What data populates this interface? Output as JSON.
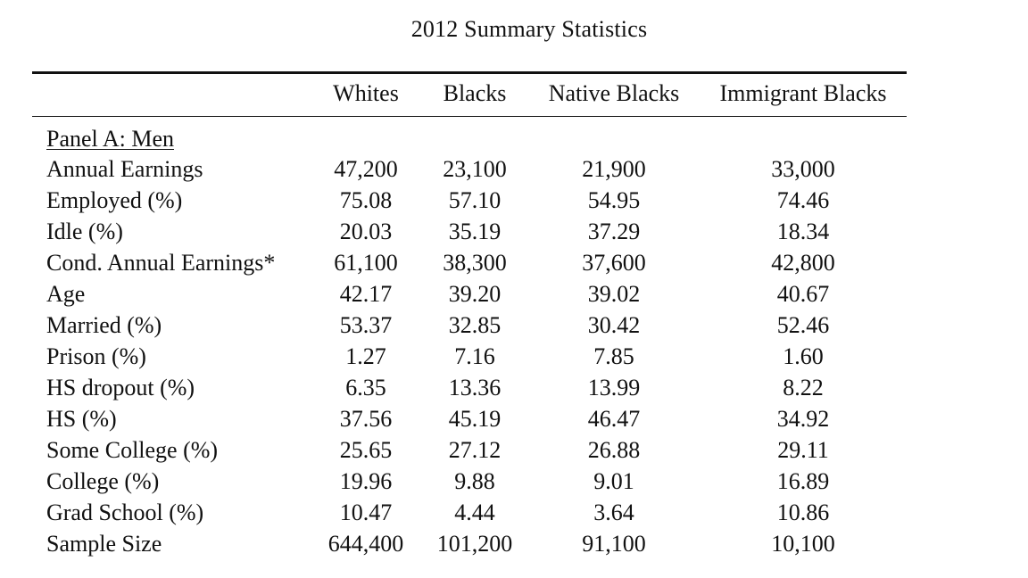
{
  "title": "2012 Summary Statistics",
  "columns": [
    "Whites",
    "Blacks",
    "Native Blacks",
    "Immigrant Blacks"
  ],
  "panel_title": "Panel A: Men",
  "rows": [
    {
      "label": "Annual Earnings",
      "values": [
        "47,200",
        "23,100",
        "21,900",
        "33,000"
      ]
    },
    {
      "label": "Employed (%)",
      "values": [
        "75.08",
        "57.10",
        "54.95",
        "74.46"
      ]
    },
    {
      "label": "Idle (%)",
      "values": [
        "20.03",
        "35.19",
        "37.29",
        "18.34"
      ]
    },
    {
      "label": "Cond. Annual Earnings*",
      "values": [
        "61,100",
        "38,300",
        "37,600",
        "42,800"
      ]
    },
    {
      "label": "Age",
      "values": [
        "42.17",
        "39.20",
        "39.02",
        "40.67"
      ]
    },
    {
      "label": "Married (%)",
      "values": [
        "53.37",
        "32.85",
        "30.42",
        "52.46"
      ]
    },
    {
      "label": "Prison (%)",
      "values": [
        "1.27",
        "7.16",
        "7.85",
        "1.60"
      ]
    },
    {
      "label": "HS dropout (%)",
      "values": [
        "6.35",
        "13.36",
        "13.99",
        "8.22"
      ]
    },
    {
      "label": "HS (%)",
      "values": [
        "37.56",
        "45.19",
        "46.47",
        "34.92"
      ]
    },
    {
      "label": "Some College (%)",
      "values": [
        "25.65",
        "27.12",
        "26.88",
        "29.11"
      ]
    },
    {
      "label": "College (%)",
      "values": [
        "19.96",
        "9.88",
        "9.01",
        "16.89"
      ]
    },
    {
      "label": "Grad School (%)",
      "values": [
        "10.47",
        "4.44",
        "3.64",
        "10.86"
      ]
    },
    {
      "label": "Sample Size",
      "values": [
        "644,400",
        "101,200",
        "91,100",
        "10,100"
      ]
    }
  ]
}
